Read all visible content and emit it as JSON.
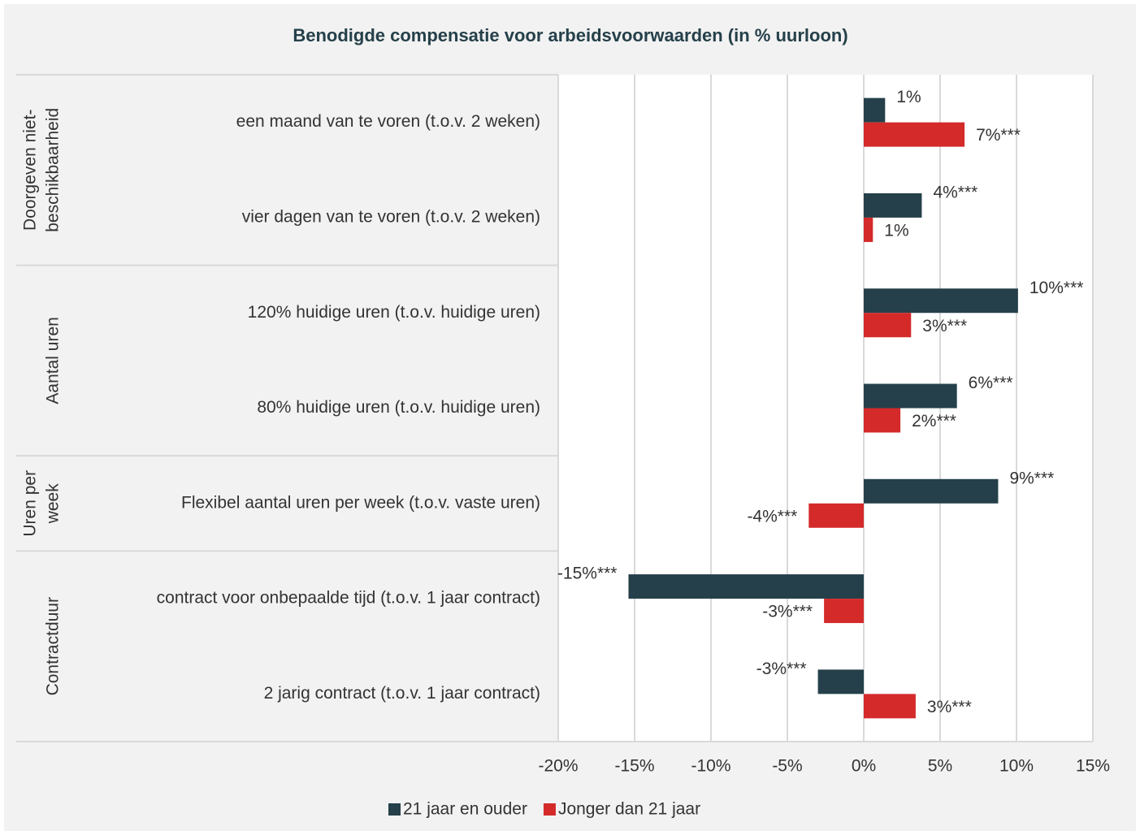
{
  "chart_data": {
    "type": "bar",
    "orientation": "horizontal",
    "title": "Benodigde compensatie voor arbeidsvoorwaarden (in % uurloon)",
    "groups": [
      {
        "label": [
          "Doorgeven niet-",
          "beschikbaarheid"
        ],
        "categories": [
          "een maand van te voren (t.o.v. 2 weken)",
          "vier dagen van te voren (t.o.v. 2 weken)"
        ]
      },
      {
        "label": [
          "Aantal uren"
        ],
        "categories": [
          "120% huidige uren (t.o.v. huidige uren)",
          "80% huidige uren (t.o.v. huidige uren)"
        ]
      },
      {
        "label": [
          "Uren per",
          "week"
        ],
        "categories": [
          "Flexibel aantal uren per week (t.o.v. vaste uren)"
        ]
      },
      {
        "label": [
          "Contractduur"
        ],
        "categories": [
          "contract voor onbepaalde tijd (t.o.v. 1 jaar contract)",
          "2 jarig contract (t.o.v. 1 jaar contract)"
        ]
      }
    ],
    "series": [
      {
        "name": "21 jaar en ouder",
        "color": "#25404a",
        "values": [
          1.4,
          3.8,
          10.1,
          6.1,
          8.8,
          -15.4,
          -3.0
        ],
        "value_labels": [
          "1%",
          "4%***",
          "10%***",
          "6%***",
          "9%***",
          "-15%***",
          "-3%***"
        ]
      },
      {
        "name": "Jonger dan 21 jaar",
        "color": "#d42a2a",
        "values": [
          6.6,
          0.6,
          3.1,
          2.4,
          -3.6,
          -2.6,
          3.4
        ],
        "value_labels": [
          "7%***",
          "1%",
          "3%***",
          "2%***",
          "-4%***",
          "-3%***",
          "3%***"
        ]
      }
    ],
    "xlim": [
      -20,
      15
    ],
    "xticks": [
      {
        "value": -20,
        "label": "-20%"
      },
      {
        "value": -15,
        "label": "-15%"
      },
      {
        "value": -10,
        "label": "-10%"
      },
      {
        "value": -5,
        "label": "-5%"
      },
      {
        "value": 0,
        "label": "0%"
      },
      {
        "value": 5,
        "label": "5%"
      },
      {
        "value": 10,
        "label": "10%"
      },
      {
        "value": 15,
        "label": "15%"
      }
    ],
    "grid": true,
    "legend": "bottom"
  }
}
